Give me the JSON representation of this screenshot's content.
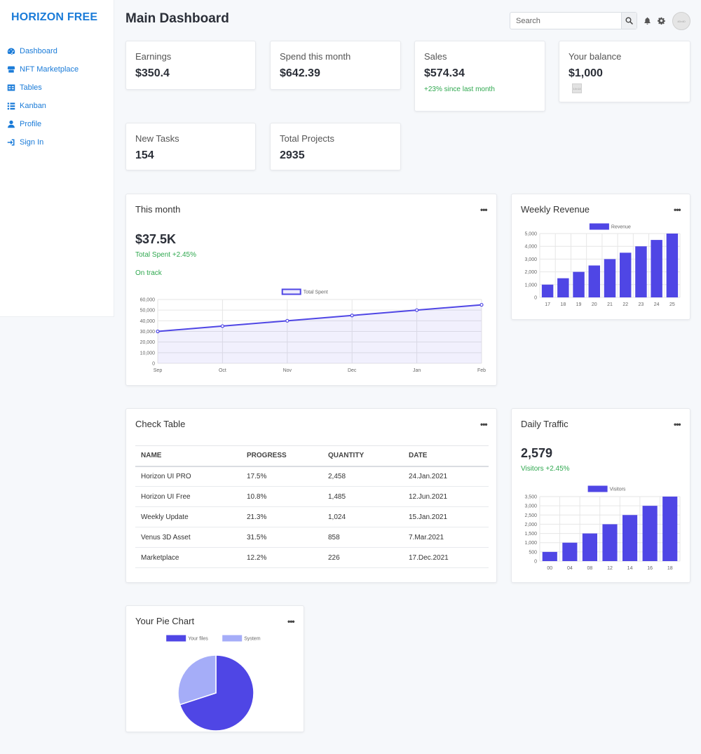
{
  "brand": "HORIZON FREE",
  "nav": [
    {
      "label": "Dashboard",
      "icon": "dashboard-icon"
    },
    {
      "label": "NFT Marketplace",
      "icon": "store-icon"
    },
    {
      "label": "Tables",
      "icon": "table-icon"
    },
    {
      "label": "Kanban",
      "icon": "list-icon"
    },
    {
      "label": "Profile",
      "icon": "user-icon"
    },
    {
      "label": "Sign In",
      "icon": "sign-in-icon"
    }
  ],
  "header": {
    "title": "Main Dashboard",
    "search_placeholder": "Search",
    "avatar_alt": "40×40"
  },
  "stats": [
    {
      "label": "Earnings",
      "value": "$350.4"
    },
    {
      "label": "Spend this month",
      "value": "$642.39"
    },
    {
      "label": "Sales",
      "value": "$574.34",
      "sub": "+23% since last month"
    },
    {
      "label": "Your balance",
      "value": "$1,000",
      "mini": "14×14"
    },
    {
      "label": "New Tasks",
      "value": "154"
    },
    {
      "label": "Total Projects",
      "value": "2935"
    }
  ],
  "this_month": {
    "title": "This month",
    "amount": "$37.5K",
    "change": "Total Spent +2.45%",
    "status": "On track"
  },
  "weekly_revenue": {
    "title": "Weekly Revenue"
  },
  "check_table": {
    "title": "Check Table",
    "columns": [
      "NAME",
      "PROGRESS",
      "QUANTITY",
      "DATE"
    ],
    "rows": [
      [
        "Horizon UI PRO",
        "17.5%",
        "2,458",
        "24.Jan.2021"
      ],
      [
        "Horizon UI Free",
        "10.8%",
        "1,485",
        "12.Jun.2021"
      ],
      [
        "Weekly Update",
        "21.3%",
        "1,024",
        "15.Jan.2021"
      ],
      [
        "Venus 3D Asset",
        "31.5%",
        "858",
        "7.Mar.2021"
      ],
      [
        "Marketplace",
        "12.2%",
        "226",
        "17.Dec.2021"
      ]
    ]
  },
  "daily_traffic": {
    "title": "Daily Traffic",
    "value": "2,579",
    "change": "Visitors +2.45%"
  },
  "pie": {
    "title": "Your Pie Chart"
  },
  "more_label": "•••",
  "colors": {
    "accent": "#4f46e5",
    "accent_light": "#a5adf8",
    "brand": "#1a7bd8",
    "positive": "#2fa84f"
  },
  "chart_data": [
    {
      "type": "line",
      "categories": [
        "Sep",
        "Oct",
        "Nov",
        "Dec",
        "Jan",
        "Feb"
      ],
      "series": [
        {
          "name": "Total Spent",
          "values": [
            30000,
            35000,
            40000,
            45000,
            50000,
            55000
          ]
        }
      ],
      "ylim": [
        0,
        60000
      ],
      "yticks": [
        "0",
        "10,000",
        "20,000",
        "30,000",
        "40,000",
        "50,000",
        "60,000"
      ],
      "legend": "top-center",
      "grid": true
    },
    {
      "type": "bar",
      "categories": [
        "17",
        "18",
        "19",
        "20",
        "21",
        "22",
        "23",
        "24",
        "25"
      ],
      "series": [
        {
          "name": "Revenue",
          "values": [
            1000,
            1500,
            2000,
            2500,
            3000,
            3500,
            4000,
            4500,
            5000
          ]
        }
      ],
      "ylim": [
        0,
        5000
      ],
      "yticks": [
        "0",
        "1,000",
        "2,000",
        "3,000",
        "4,000",
        "5,000"
      ],
      "legend": "top-center",
      "grid": true
    },
    {
      "type": "bar",
      "categories": [
        "00",
        "04",
        "08",
        "12",
        "14",
        "16",
        "18"
      ],
      "series": [
        {
          "name": "Visitors",
          "values": [
            500,
            1000,
            1500,
            2000,
            2500,
            3000,
            3500
          ]
        }
      ],
      "ylim": [
        0,
        3500
      ],
      "yticks": [
        "0",
        "500",
        "1,000",
        "1,500",
        "2,000",
        "2,500",
        "3,000",
        "3,500"
      ],
      "legend": "top-center",
      "grid": true
    },
    {
      "type": "pie",
      "categories": [
        "Your files",
        "System"
      ],
      "values": [
        70,
        30
      ],
      "legend": "top-center"
    }
  ]
}
